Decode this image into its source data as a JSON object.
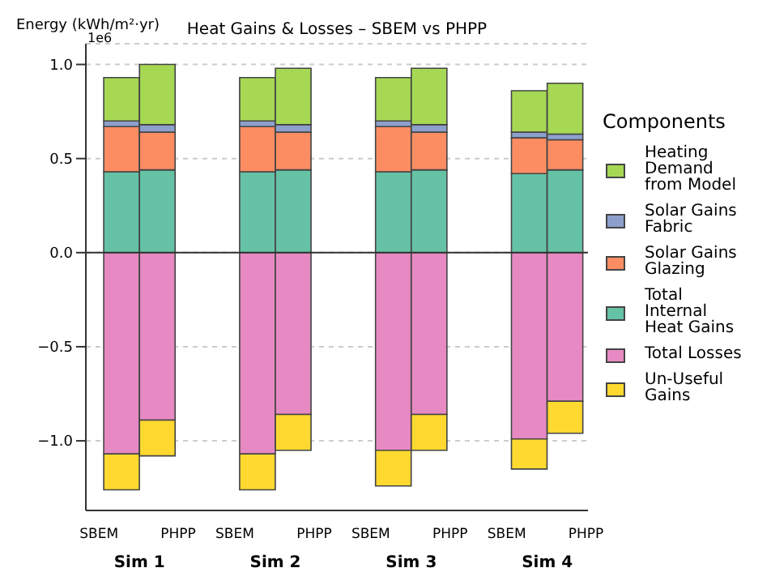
{
  "chart_data": {
    "type": "bar",
    "title": "Heat Gains & Losses – SBEM vs PHPP",
    "ylabel": "Energy (kWh/m²·yr)",
    "legend_title": "Components",
    "categories": [
      "SBEM",
      "PHPP",
      "SBEM",
      "PHPP",
      "SBEM",
      "PHPP",
      "SBEM",
      "PHPP"
    ],
    "annotations": [
      "1e6",
      "Sim 1",
      "Sim 2",
      "Sim 3",
      "Sim 4"
    ],
    "stacked": true,
    "series": [
      {
        "name": "Total Internal Heat Gains",
        "color": "#66c2a5",
        "values": [
          0.43,
          0.44,
          0.43,
          0.44,
          0.43,
          0.44,
          0.42,
          0.44
        ]
      },
      {
        "name": "Solar Gains Glazing",
        "color": "#fc8d62",
        "values": [
          0.24,
          0.2,
          0.24,
          0.2,
          0.24,
          0.2,
          0.19,
          0.16
        ]
      },
      {
        "name": "Solar Gains Fabric",
        "color": "#8da0cb",
        "values": [
          0.03,
          0.04,
          0.03,
          0.04,
          0.03,
          0.04,
          0.03,
          0.03
        ]
      },
      {
        "name": "Heating Demand from Model",
        "color": "#a6d854",
        "values": [
          0.23,
          0.32,
          0.23,
          0.3,
          0.23,
          0.3,
          0.22,
          0.27
        ]
      },
      {
        "name": "Total Losses",
        "color": "#e78ac3",
        "values": [
          -1.07,
          -0.89,
          -1.07,
          -0.86,
          -1.05,
          -0.86,
          -0.99,
          -0.79
        ]
      },
      {
        "name": "Un-Useful Gains",
        "color": "#ffd92f",
        "values": [
          -0.19,
          -0.19,
          -0.19,
          -0.19,
          -0.19,
          -0.19,
          -0.16,
          -0.17
        ]
      }
    ],
    "ylim": [
      -1.37,
      1.11
    ],
    "yticks": [
      {
        "value": -1,
        "label": "−1.0"
      },
      {
        "value": -0.5,
        "label": "−0.5"
      },
      {
        "value": 0,
        "label": "0.0"
      },
      {
        "value": 0.5,
        "label": "0.5"
      },
      {
        "value": 1,
        "label": "1.0"
      }
    ],
    "ref_lines": [
      {
        "axis": "y",
        "value": 0,
        "color": "#333333"
      }
    ],
    "grid": "y",
    "legend": "right"
  }
}
